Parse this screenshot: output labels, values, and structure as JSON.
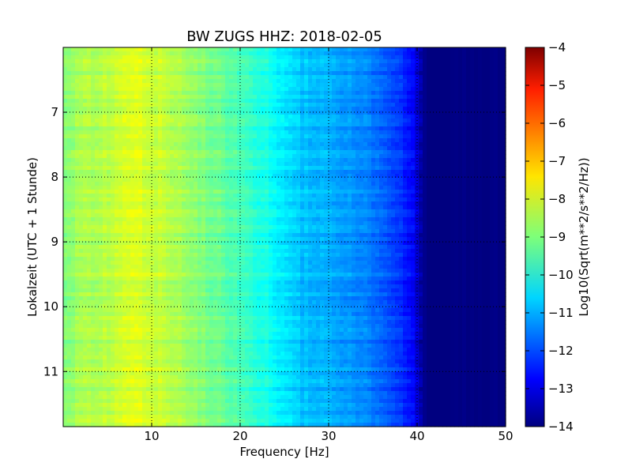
{
  "chart_data": {
    "type": "heatmap",
    "title": "BW ZUGS HHZ: 2018-02-05",
    "xlabel": "Frequency [Hz]",
    "ylabel": "Lokalzeit (UTC + 1 Stunde)",
    "colorbar_label": "Log10(Sqrt(m**2/s**2/Hz))",
    "xlim": [
      0,
      50
    ],
    "ylim": [
      11.85,
      6.0
    ],
    "x_ticks": [
      10,
      20,
      30,
      40,
      50
    ],
    "x_tick_labels": [
      "10",
      "20",
      "30",
      "40",
      "50"
    ],
    "y_ticks": [
      7,
      8,
      9,
      10,
      11
    ],
    "y_tick_labels": [
      "7",
      "8",
      "9",
      "10",
      "11"
    ],
    "y_inverted": true,
    "grid": true,
    "colormap": "jet",
    "color_range": [
      -14,
      -4
    ],
    "colorbar_ticks": [
      -4,
      -5,
      -6,
      -7,
      -8,
      -9,
      -10,
      -11,
      -12,
      -13,
      -14
    ],
    "colorbar_tick_labels": [
      "−4",
      "−5",
      "−6",
      "−7",
      "−8",
      "−9",
      "−10",
      "−11",
      "−12",
      "−13",
      "−14"
    ],
    "frequency_profile": {
      "frequency_hz": [
        0,
        2,
        5,
        7,
        8.5,
        10,
        12,
        14,
        17,
        20,
        23,
        25,
        27,
        30,
        33,
        36,
        38,
        39.5,
        40.5,
        41,
        45,
        50
      ],
      "log10_value": [
        -8.9,
        -8.6,
        -8.4,
        -8.2,
        -8.1,
        -8.25,
        -8.45,
        -8.75,
        -9.15,
        -9.55,
        -10.05,
        -10.45,
        -10.85,
        -11.05,
        -11.35,
        -11.75,
        -12.25,
        -12.8,
        -13.7,
        -14.0,
        -14.0,
        -14.0
      ]
    }
  }
}
